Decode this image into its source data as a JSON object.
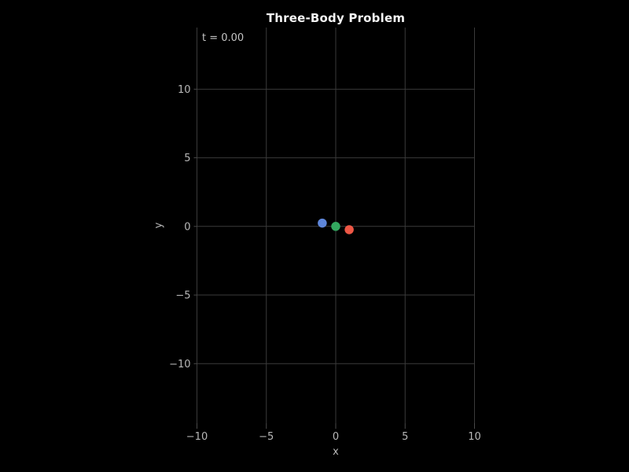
{
  "figure": {
    "title": "Three-Body Problem",
    "annotation": "t = 0.00",
    "background": "#000000"
  },
  "chart_data": {
    "type": "scatter",
    "title": "Three-Body Problem",
    "annotation": "t = 0.00",
    "time_value": "0.00",
    "xlabel": "x",
    "ylabel": "y",
    "xlim": [
      -10,
      10
    ],
    "ylim": [
      -14.34,
      14.49
    ],
    "xticks": {
      "values": [
        -10,
        -5,
        0,
        5,
        10
      ],
      "labels": [
        "−10",
        "−5",
        "0",
        "5",
        "10"
      ]
    },
    "yticks": {
      "values": [
        -10,
        -5,
        0,
        5,
        10
      ],
      "labels": [
        "−10",
        "−5",
        "0",
        "5",
        "10"
      ]
    },
    "grid": true,
    "legend": false,
    "series": [
      {
        "name": "body-blue",
        "color": "#5e86da",
        "marker": "circle",
        "marker_diameter_px": 11.5,
        "points": [
          {
            "x": -0.97,
            "y": 0.24
          }
        ]
      },
      {
        "name": "body-green",
        "color": "#33a75f",
        "marker": "circle",
        "marker_diameter_px": 11.5,
        "points": [
          {
            "x": 0.0,
            "y": 0.0
          }
        ]
      },
      {
        "name": "body-red",
        "color": "#ee5745",
        "marker": "circle",
        "marker_diameter_px": 11.5,
        "points": [
          {
            "x": 0.97,
            "y": -0.24
          }
        ]
      }
    ],
    "colors": {
      "background": "#000000",
      "grid": "#3a3a3a",
      "tick": "#4a4a4a",
      "tick_label": "#b8b8b8",
      "axis_label": "#b8b8b8",
      "title": "#f5f5f5",
      "annotation": "#c4c4c4"
    }
  }
}
